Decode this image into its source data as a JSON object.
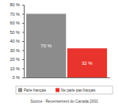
{
  "chart_data": {
    "type": "bar",
    "categories": [
      "Parle français",
      "Ne parle pas français"
    ],
    "values": [
      70,
      32
    ],
    "value_labels": [
      "70 %",
      "32 %"
    ],
    "colors": [
      "#8c8c8c",
      "#e8342c"
    ],
    "ylim": [
      0,
      80
    ],
    "yticks": [
      {
        "value": 0,
        "label": "0 %"
      },
      {
        "value": 10,
        "label": "10 %"
      },
      {
        "value": 20,
        "label": "20 %"
      },
      {
        "value": 30,
        "label": "30 %"
      },
      {
        "value": 40,
        "label": "40 %"
      },
      {
        "value": 50,
        "label": "50 %"
      },
      {
        "value": 60,
        "label": "60 %"
      },
      {
        "value": 70,
        "label": "70 %"
      },
      {
        "value": 80,
        "label": "80 %"
      }
    ],
    "grid": false,
    "data_labels": true,
    "tick_labels": "y",
    "legend": "bottom",
    "annotations": [
      "Source : Recensement du Canada 2001"
    ]
  }
}
